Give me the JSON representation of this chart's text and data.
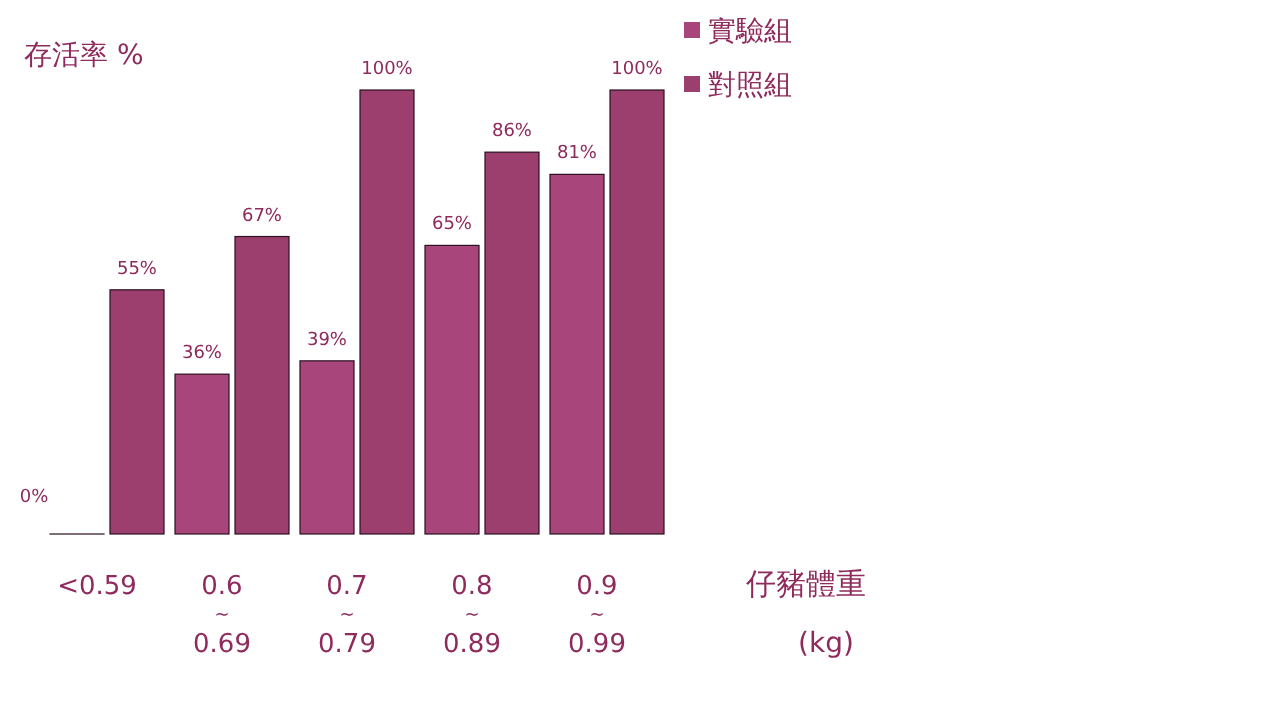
{
  "chart_data": {
    "type": "bar",
    "ylabel": "存活率 %",
    "xlabel": "仔豬體重 (kg)",
    "categories": [
      "<0.59",
      "0.6~0.69",
      "0.7~0.79",
      "0.8~0.89",
      "0.9~0.99"
    ],
    "series": [
      {
        "name": "實驗組",
        "color": "#a8467c",
        "values": [
          0,
          36,
          39,
          65,
          81
        ],
        "value_labels": [
          "0%",
          "36%",
          "39%",
          "65%",
          "81%"
        ]
      },
      {
        "name": "對照組",
        "color": "#9c3f6e",
        "values": [
          55,
          67,
          100,
          86,
          100
        ],
        "value_labels": [
          "55%",
          "67%",
          "100%",
          "86%",
          "100%"
        ]
      }
    ],
    "legend": "top right",
    "grid": false
  }
}
